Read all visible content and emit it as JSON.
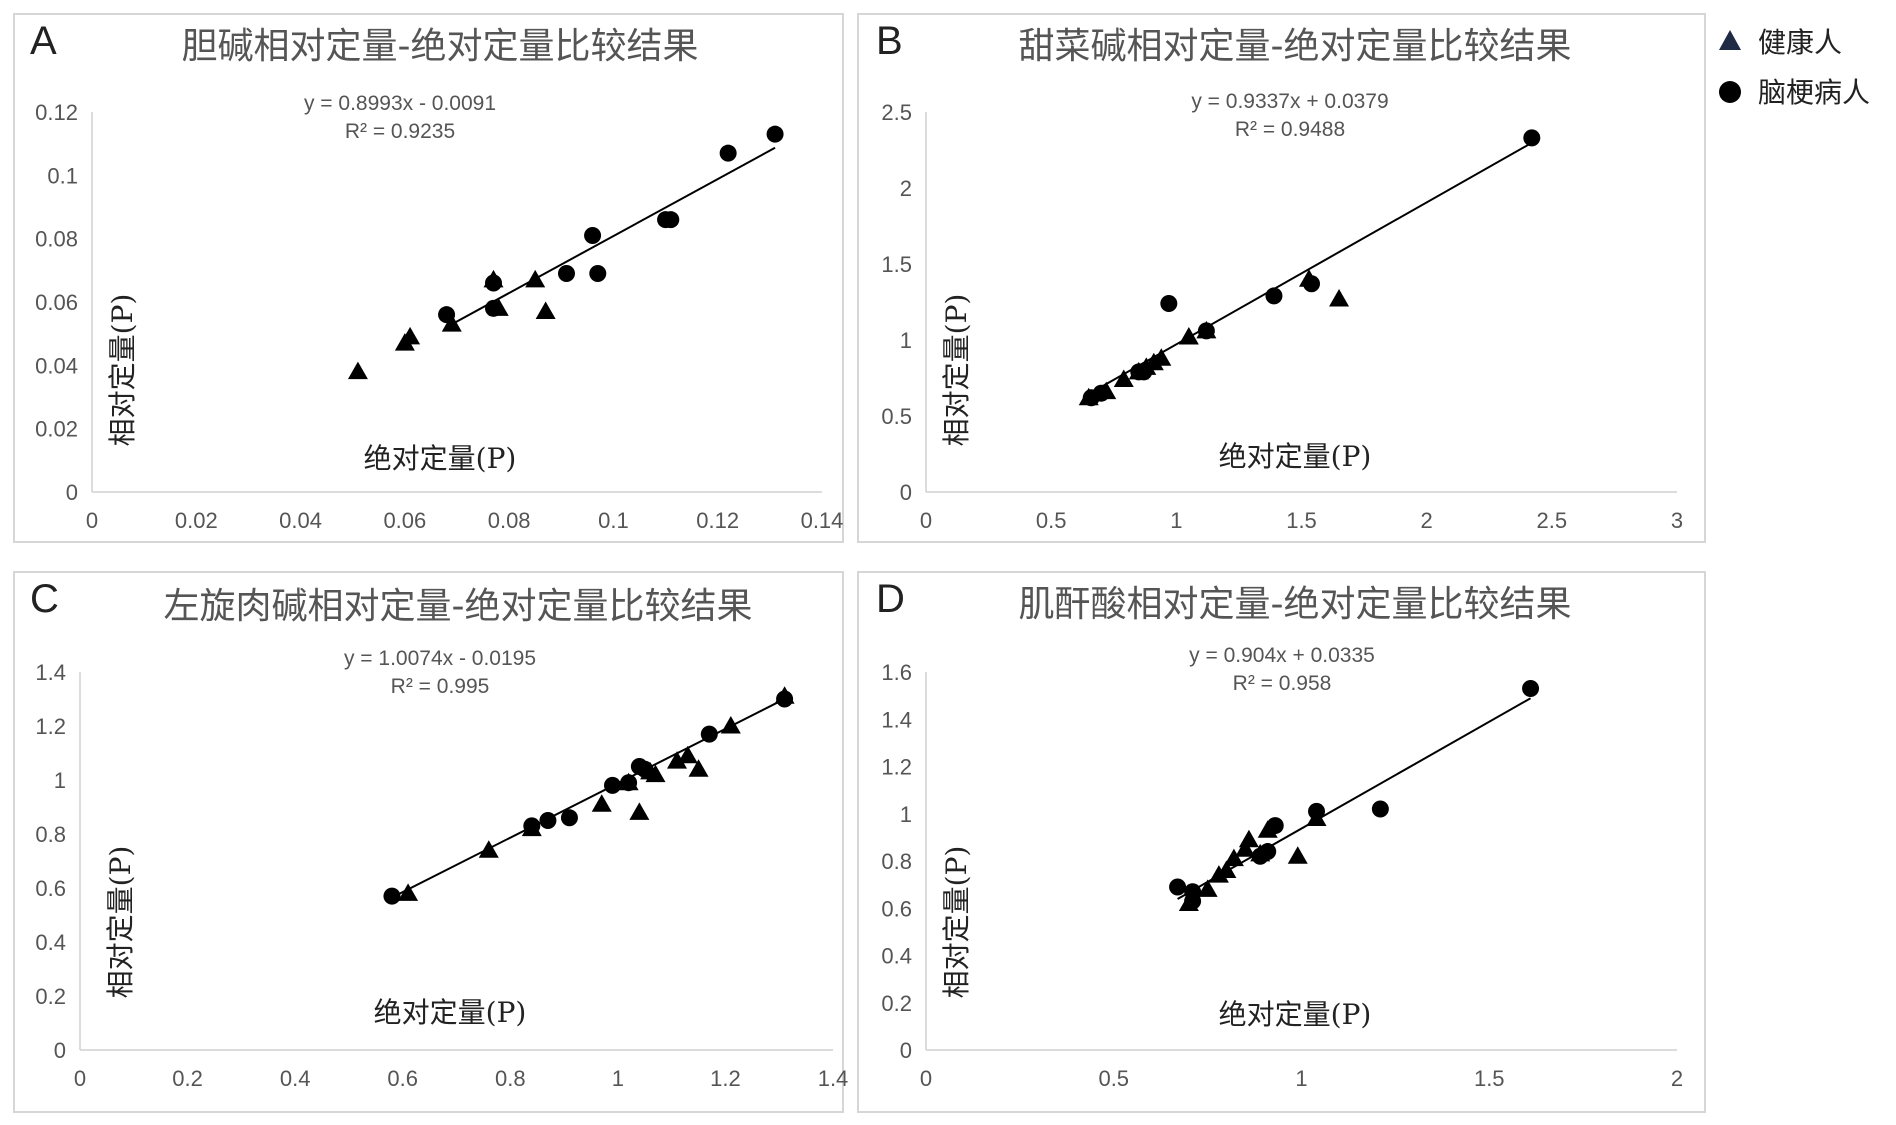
{
  "legend": {
    "items": [
      {
        "label": "健康人",
        "marker": "triangle",
        "color": "#1f2a44"
      },
      {
        "label": "脑梗病人",
        "marker": "circle",
        "color": "#000000"
      }
    ]
  },
  "chart_data": [
    {
      "type": "scatter",
      "letter": "A",
      "title": "胆碱相对定量-绝对定量比较结果",
      "xlabel": "绝对定量(P)",
      "ylabel": "相对定量(P)",
      "equation": "y = 0.8993x - 0.0091",
      "r2": "R² = 0.9235",
      "xlim": [
        0,
        0.14
      ],
      "ylim": [
        0,
        0.12
      ],
      "xticks": [
        "0",
        "0.02",
        "0.04",
        "0.06",
        "0.08",
        "0.1",
        "0.12",
        "0.14"
      ],
      "yticks": [
        "0",
        "0.02",
        "0.04",
        "0.06",
        "0.08",
        "0.1",
        "0.12"
      ],
      "trendline": {
        "slope": 0.8993,
        "intercept": -0.0091,
        "x_range": [
          0.068,
          0.131
        ]
      },
      "series": [
        {
          "name": "健康人",
          "marker": "triangle",
          "points": [
            [
              0.051,
              0.038
            ],
            [
              0.06,
              0.047
            ],
            [
              0.061,
              0.049
            ],
            [
              0.069,
              0.053
            ],
            [
              0.077,
              0.067
            ],
            [
              0.078,
              0.058
            ],
            [
              0.085,
              0.067
            ],
            [
              0.087,
              0.057
            ]
          ]
        },
        {
          "name": "脑梗病人",
          "marker": "circle",
          "points": [
            [
              0.068,
              0.056
            ],
            [
              0.077,
              0.066
            ],
            [
              0.077,
              0.058
            ],
            [
              0.091,
              0.069
            ],
            [
              0.096,
              0.081
            ],
            [
              0.097,
              0.069
            ],
            [
              0.11,
              0.086
            ],
            [
              0.111,
              0.086
            ],
            [
              0.122,
              0.107
            ],
            [
              0.131,
              0.113
            ]
          ]
        }
      ]
    },
    {
      "type": "scatter",
      "letter": "B",
      "title": "甜菜碱相对定量-绝对定量比较结果",
      "xlabel": "绝对定量(P)",
      "ylabel": "相对定量(P)",
      "equation": "y = 0.9337x + 0.0379",
      "r2": "R² = 0.9488",
      "xlim": [
        0,
        3
      ],
      "ylim": [
        0,
        2.5
      ],
      "xticks": [
        "0",
        "0.5",
        "1",
        "1.5",
        "2",
        "2.5",
        "3"
      ],
      "yticks": [
        "0",
        "0.5",
        "1",
        "1.5",
        "2",
        "2.5"
      ],
      "trendline": {
        "slope": 0.9337,
        "intercept": 0.0379,
        "x_range": [
          0.65,
          2.42
        ]
      },
      "series": [
        {
          "name": "健康人",
          "marker": "triangle",
          "points": [
            [
              0.65,
              0.62
            ],
            [
              0.72,
              0.66
            ],
            [
              0.79,
              0.74
            ],
            [
              0.85,
              0.79
            ],
            [
              0.88,
              0.82
            ],
            [
              0.91,
              0.85
            ],
            [
              0.94,
              0.88
            ],
            [
              1.05,
              1.02
            ],
            [
              1.12,
              1.06
            ],
            [
              1.53,
              1.4
            ],
            [
              1.65,
              1.27
            ]
          ]
        },
        {
          "name": "脑梗病人",
          "marker": "circle",
          "points": [
            [
              0.66,
              0.62
            ],
            [
              0.7,
              0.65
            ],
            [
              0.85,
              0.79
            ],
            [
              0.87,
              0.79
            ],
            [
              0.97,
              1.24
            ],
            [
              1.12,
              1.06
            ],
            [
              1.39,
              1.29
            ],
            [
              1.54,
              1.37
            ],
            [
              2.42,
              2.33
            ]
          ]
        }
      ]
    },
    {
      "type": "scatter",
      "letter": "C",
      "title": "左旋肉碱相对定量-绝对定量比较结果",
      "xlabel": "绝对定量(P)",
      "ylabel": "相对定量(P)",
      "equation": "y = 1.0074x - 0.0195",
      "r2": "R² = 0.995",
      "xlim": [
        0,
        1.4
      ],
      "ylim": [
        0,
        1.4
      ],
      "xticks": [
        "0",
        "0.2",
        "0.4",
        "0.6",
        "0.8",
        "1",
        "1.2",
        "1.4"
      ],
      "yticks": [
        "0",
        "0.2",
        "0.4",
        "0.6",
        "0.8",
        "1",
        "1.2",
        "1.4"
      ],
      "trendline": {
        "slope": 1.0074,
        "intercept": -0.0195,
        "x_range": [
          0.58,
          1.31
        ]
      },
      "series": [
        {
          "name": "健康人",
          "marker": "triangle",
          "points": [
            [
              0.61,
              0.58
            ],
            [
              0.76,
              0.74
            ],
            [
              0.84,
              0.82
            ],
            [
              0.97,
              0.91
            ],
            [
              1.02,
              0.99
            ],
            [
              1.04,
              0.88
            ],
            [
              1.06,
              1.03
            ],
            [
              1.07,
              1.02
            ],
            [
              1.11,
              1.07
            ],
            [
              1.13,
              1.09
            ],
            [
              1.15,
              1.04
            ],
            [
              1.21,
              1.2
            ],
            [
              1.31,
              1.31
            ]
          ]
        },
        {
          "name": "脑梗病人",
          "marker": "circle",
          "points": [
            [
              0.58,
              0.57
            ],
            [
              0.84,
              0.83
            ],
            [
              0.87,
              0.85
            ],
            [
              0.91,
              0.86
            ],
            [
              0.99,
              0.98
            ],
            [
              1.02,
              0.99
            ],
            [
              1.04,
              1.05
            ],
            [
              1.05,
              1.04
            ],
            [
              1.17,
              1.17
            ],
            [
              1.31,
              1.3
            ]
          ]
        }
      ]
    },
    {
      "type": "scatter",
      "letter": "D",
      "title": "肌酐酸相对定量-绝对定量比较结果",
      "xlabel": "绝对定量(P)",
      "ylabel": "相对定量(P)",
      "equation": "y = 0.904x + 0.0335",
      "r2": "R² = 0.958",
      "xlim": [
        0,
        2
      ],
      "ylim": [
        0,
        1.6
      ],
      "xticks": [
        "0",
        "0.5",
        "1",
        "1.5",
        "2"
      ],
      "yticks": [
        "0",
        "0.2",
        "0.4",
        "0.6",
        "0.8",
        "1",
        "1.2",
        "1.4",
        "1.6"
      ],
      "trendline": {
        "slope": 0.904,
        "intercept": 0.0335,
        "x_range": [
          0.67,
          1.61
        ]
      },
      "series": [
        {
          "name": "健康人",
          "marker": "triangle",
          "points": [
            [
              0.7,
              0.62
            ],
            [
              0.75,
              0.68
            ],
            [
              0.78,
              0.74
            ],
            [
              0.8,
              0.76
            ],
            [
              0.82,
              0.81
            ],
            [
              0.85,
              0.85
            ],
            [
              0.86,
              0.89
            ],
            [
              0.89,
              0.83
            ],
            [
              0.91,
              0.93
            ],
            [
              0.99,
              0.82
            ],
            [
              1.04,
              0.98
            ]
          ]
        },
        {
          "name": "脑梗病人",
          "marker": "circle",
          "points": [
            [
              0.67,
              0.69
            ],
            [
              0.71,
              0.63
            ],
            [
              0.71,
              0.67
            ],
            [
              0.89,
              0.82
            ],
            [
              0.91,
              0.84
            ],
            [
              0.93,
              0.95
            ],
            [
              1.04,
              1.01
            ],
            [
              1.21,
              1.02
            ],
            [
              1.61,
              1.53
            ]
          ]
        }
      ]
    }
  ]
}
